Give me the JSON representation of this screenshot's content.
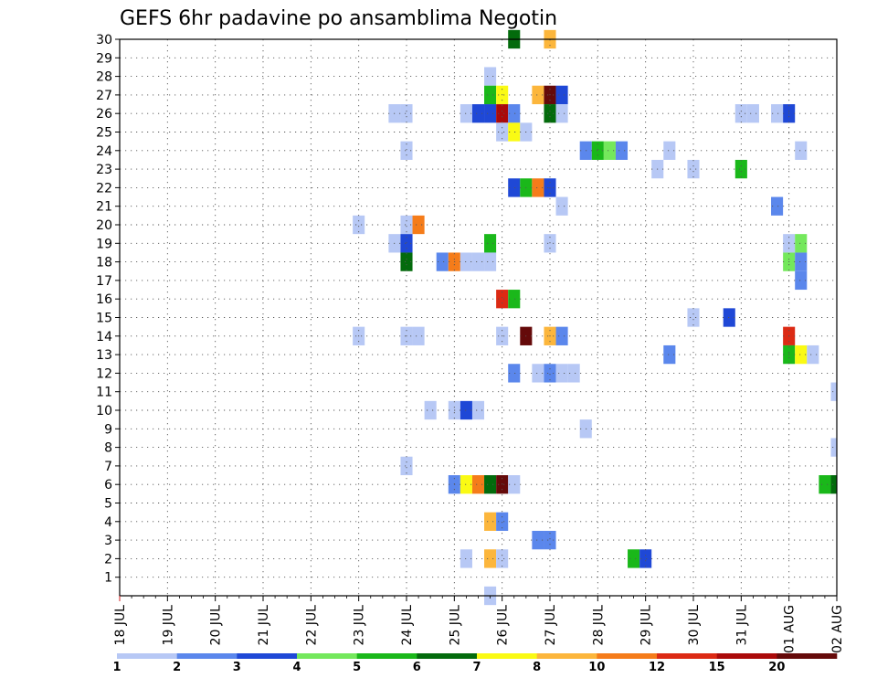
{
  "chart_data": {
    "type": "heatmap",
    "title": "GEFS 6hr padavine po ansamblima Negotin",
    "xlabel": "",
    "ylabel": "",
    "x_ticks": [
      "18 JUL",
      "19 JUL",
      "20 JUL",
      "21 JUL",
      "22 JUL",
      "23 JUL",
      "24 JUL",
      "25 JUL",
      "26 JUL",
      "27 JUL",
      "28 JUL",
      "29 JUL",
      "30 JUL",
      "31 JUL",
      "01 AUG",
      "02 AUG"
    ],
    "y_ticks": [
      1,
      2,
      3,
      4,
      5,
      6,
      7,
      8,
      9,
      10,
      11,
      12,
      13,
      14,
      15,
      16,
      17,
      18,
      19,
      20,
      21,
      22,
      23,
      24,
      25,
      26,
      27,
      28,
      29,
      30
    ],
    "xlim_steps": [
      0,
      60
    ],
    "ylim": [
      0,
      30
    ],
    "grid": true,
    "colorbar": {
      "placement": "bottom",
      "labels": [
        "1",
        "2",
        "3",
        "4",
        "5",
        "6",
        "7",
        "8",
        "10",
        "12",
        "15",
        "20"
      ],
      "colors": [
        "#b7c8f5",
        "#5b87ec",
        "#1f48d6",
        "#74e85c",
        "#1ab81a",
        "#036b0c",
        "#fafa14",
        "#fcb63c",
        "#f57c1a",
        "#dc2a14",
        "#ab0a0a",
        "#650a0a"
      ]
    },
    "cells": [
      [
        33,
        30,
        5
      ],
      [
        36,
        30,
        7
      ],
      [
        31,
        28,
        0
      ],
      [
        31,
        27,
        4
      ],
      [
        32,
        27,
        6
      ],
      [
        35,
        27,
        7
      ],
      [
        36,
        27,
        11
      ],
      [
        37,
        27,
        2
      ],
      [
        23,
        26,
        0
      ],
      [
        24,
        26,
        0
      ],
      [
        29,
        26,
        0
      ],
      [
        30,
        26,
        2
      ],
      [
        31,
        26,
        2
      ],
      [
        32,
        26,
        10
      ],
      [
        33,
        26,
        1
      ],
      [
        36,
        26,
        5
      ],
      [
        37,
        26,
        0
      ],
      [
        52,
        26,
        0
      ],
      [
        53,
        26,
        0
      ],
      [
        55,
        26,
        0
      ],
      [
        56,
        26,
        2
      ],
      [
        32,
        25,
        0
      ],
      [
        33,
        25,
        6
      ],
      [
        34,
        25,
        0
      ],
      [
        24,
        24,
        0
      ],
      [
        39,
        24,
        1
      ],
      [
        40,
        24,
        4
      ],
      [
        41,
        24,
        3
      ],
      [
        42,
        24,
        1
      ],
      [
        46,
        24,
        0
      ],
      [
        57,
        24,
        0
      ],
      [
        45,
        23,
        0
      ],
      [
        48,
        23,
        0
      ],
      [
        52,
        23,
        4
      ],
      [
        33,
        22,
        2
      ],
      [
        34,
        22,
        4
      ],
      [
        35,
        22,
        8
      ],
      [
        36,
        22,
        2
      ],
      [
        37,
        21,
        0
      ],
      [
        55,
        21,
        1
      ],
      [
        20,
        20,
        0
      ],
      [
        24,
        20,
        0
      ],
      [
        25,
        20,
        8
      ],
      [
        23,
        19,
        0
      ],
      [
        24,
        19,
        2
      ],
      [
        31,
        19,
        4
      ],
      [
        36,
        19,
        0
      ],
      [
        56,
        19,
        0
      ],
      [
        57,
        19,
        3
      ],
      [
        24,
        18,
        5
      ],
      [
        27,
        18,
        1
      ],
      [
        28,
        18,
        8
      ],
      [
        29,
        18,
        0
      ],
      [
        30,
        18,
        0
      ],
      [
        31,
        18,
        0
      ],
      [
        56,
        18,
        3
      ],
      [
        57,
        18,
        1
      ],
      [
        57,
        17,
        1
      ],
      [
        32,
        16,
        9
      ],
      [
        33,
        16,
        4
      ],
      [
        48,
        15,
        0
      ],
      [
        51,
        15,
        2
      ],
      [
        20,
        14,
        0
      ],
      [
        24,
        14,
        0
      ],
      [
        25,
        14,
        0
      ],
      [
        32,
        14,
        0
      ],
      [
        34,
        14,
        11
      ],
      [
        36,
        14,
        7
      ],
      [
        37,
        14,
        1
      ],
      [
        56,
        14,
        9
      ],
      [
        46,
        13,
        1
      ],
      [
        56,
        13,
        4
      ],
      [
        57,
        13,
        6
      ],
      [
        58,
        13,
        0
      ],
      [
        33,
        12,
        1
      ],
      [
        35,
        12,
        0
      ],
      [
        36,
        12,
        1
      ],
      [
        37,
        12,
        0
      ],
      [
        38,
        12,
        0
      ],
      [
        60,
        11,
        0
      ],
      [
        26,
        10,
        0
      ],
      [
        28,
        10,
        0
      ],
      [
        29,
        10,
        2
      ],
      [
        30,
        10,
        0
      ],
      [
        39,
        9,
        0
      ],
      [
        60,
        8,
        0
      ],
      [
        24,
        7,
        0
      ],
      [
        28,
        6,
        1
      ],
      [
        29,
        6,
        6
      ],
      [
        30,
        6,
        8
      ],
      [
        31,
        6,
        5
      ],
      [
        32,
        6,
        11
      ],
      [
        33,
        6,
        0
      ],
      [
        59,
        6,
        4
      ],
      [
        60,
        6,
        5
      ],
      [
        31,
        4,
        7
      ],
      [
        32,
        4,
        1
      ],
      [
        35,
        3,
        1
      ],
      [
        36,
        3,
        1
      ],
      [
        29,
        2,
        0
      ],
      [
        31,
        2,
        7
      ],
      [
        32,
        2,
        0
      ],
      [
        43,
        2,
        4
      ],
      [
        44,
        2,
        2
      ],
      [
        31,
        0,
        0
      ]
    ]
  }
}
